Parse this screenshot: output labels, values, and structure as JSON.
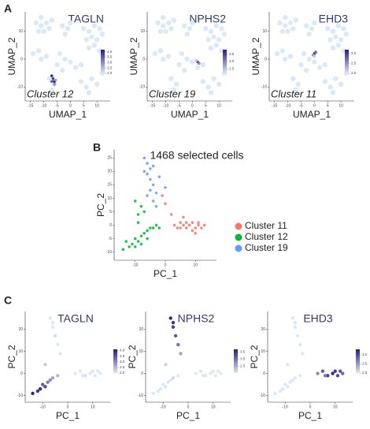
{
  "panels": [
    "A",
    "B",
    "C"
  ],
  "colormap": [
    "#dbe9f6",
    "#2a1a7f"
  ],
  "umap_cells": {
    "x": [
      -13,
      -11,
      -9,
      -12,
      -10,
      -8,
      -7,
      -11,
      -3,
      -1,
      0,
      -2,
      5,
      7,
      9,
      11,
      8,
      10,
      6,
      12,
      9,
      7,
      11,
      -14,
      -12,
      -11,
      -9,
      -4,
      -2,
      -5,
      -3,
      0,
      2,
      4,
      -8,
      -6,
      -7,
      4,
      6,
      8,
      10,
      7,
      12
    ],
    "y": [
      13,
      12,
      13,
      10,
      10,
      11,
      14,
      15,
      12,
      11,
      13,
      9,
      11,
      10,
      12,
      11,
      8,
      7,
      7,
      9,
      5,
      4,
      3,
      2,
      3,
      0,
      1,
      2,
      0,
      -2,
      -4,
      -1,
      -3,
      -2,
      -7,
      -9,
      -11,
      -8,
      -10,
      -7,
      -9,
      -12,
      -5
    ]
  },
  "chart_data": [
    {
      "type": "umap",
      "title": "TAGLN",
      "annotation": "Cluster 12",
      "xlabel": "UMAP_1",
      "ylabel": "UMAP_2",
      "xlim": [
        -17,
        15
      ],
      "ylim": [
        -15,
        17
      ],
      "xticks": [
        -15,
        -10,
        -5,
        0,
        5,
        10
      ],
      "yticks": [
        -10,
        0,
        10
      ],
      "x": [
        -7,
        -6.5,
        -6,
        -7,
        -6,
        -5.5
      ],
      "y": [
        -6,
        -7,
        -8,
        -8,
        -9,
        -7.5
      ],
      "expression": [
        4.0,
        3.8,
        4.2,
        3.5,
        3.0,
        2.8
      ],
      "clim": [
        2,
        4.2
      ],
      "cticks": [
        {
          "value": 2,
          "label": "2.0"
        },
        {
          "value": 2.5,
          "label": "2.5"
        },
        {
          "value": 3,
          "label": "3.0"
        },
        {
          "value": 3.5,
          "label": "3.5"
        },
        {
          "value": 4,
          "label": "4.0"
        }
      ]
    },
    {
      "type": "umap",
      "title": "NPHS2",
      "annotation": "Cluster 19",
      "xlabel": "UMAP_1",
      "ylabel": "UMAP_2",
      "xlim": [
        -17,
        15
      ],
      "ylim": [
        -15,
        17
      ],
      "xticks": [
        -15,
        -10,
        -5,
        0,
        5,
        10
      ],
      "yticks": [
        -10,
        0,
        10
      ],
      "x": [
        2,
        2.5,
        1.5
      ],
      "y": [
        -1,
        -1.5,
        -0.5
      ],
      "expression": [
        3.5,
        3.0,
        2.5
      ],
      "clim": [
        2.2,
        3.8
      ],
      "cticks": [
        {
          "value": 2.5,
          "label": "2.5"
        },
        {
          "value": 3,
          "label": "3.0"
        },
        {
          "value": 3.5,
          "label": "3.5"
        }
      ]
    },
    {
      "type": "umap",
      "title": "EHD3",
      "annotation": "Cluster 11",
      "xlabel": "UMAP_1",
      "ylabel": "UMAP_2",
      "xlim": [
        -17,
        15
      ],
      "ylim": [
        -15,
        17
      ],
      "xticks": [
        -15,
        -10,
        -5,
        0,
        5,
        10
      ],
      "yticks": [
        -10,
        0,
        10
      ],
      "x": [
        0,
        0.5,
        -0.5,
        0
      ],
      "y": [
        2,
        2.5,
        1.5,
        1
      ],
      "expression": [
        3.0,
        2.8,
        2.5,
        2.2
      ],
      "clim": [
        2,
        3.2
      ],
      "cticks": [
        {
          "value": 2,
          "label": "2.0"
        },
        {
          "value": 2.5,
          "label": "2.5"
        },
        {
          "value": 3,
          "label": "3.0"
        }
      ]
    },
    {
      "type": "scatter",
      "title": "1468 selected cells",
      "xlabel": "PC_1",
      "ylabel": "PC_2",
      "xlim": [
        -17,
        17
      ],
      "ylim": [
        -13,
        28
      ],
      "xticks": [
        -10,
        0,
        10
      ],
      "yticks": [
        -10,
        -5,
        0,
        5,
        10,
        15,
        20,
        25
      ],
      "series": [
        {
          "name": "Cluster 11",
          "color": "#f8766d",
          "x": [
            3,
            4,
            5,
            6,
            7,
            8,
            9,
            10,
            11,
            12,
            13,
            9,
            7,
            5,
            11,
            6,
            10,
            2,
            0,
            -1
          ],
          "y": [
            0,
            -1,
            1,
            0,
            -1,
            0,
            1,
            -1,
            0,
            -1,
            0,
            -2,
            1,
            -1,
            1,
            3,
            -3,
            4,
            8,
            11
          ]
        },
        {
          "name": "Cluster 12",
          "color": "#00ba38",
          "x": [
            -14,
            -12,
            -13,
            -11,
            -10,
            -9,
            -8,
            -7,
            -6,
            -5,
            -4,
            -3,
            -2,
            -8,
            -6,
            -10,
            -9,
            -8,
            -10,
            -7,
            -9
          ],
          "y": [
            -9,
            -8,
            -6,
            -7,
            -5,
            -6,
            -4,
            -3,
            -2,
            -1,
            -1,
            0,
            -1,
            -7,
            -5,
            -8,
            4,
            7,
            9,
            5,
            1
          ]
        },
        {
          "name": "Cluster 19",
          "color": "#619cff",
          "x": [
            -7,
            -6,
            -5,
            -6,
            -5,
            -4,
            -5,
            -6,
            -4,
            -3,
            -7,
            -4,
            -3,
            -2,
            0
          ],
          "y": [
            25,
            23,
            21,
            19,
            17,
            15,
            13,
            11,
            9,
            7,
            20,
            22,
            12,
            18,
            14
          ]
        }
      ]
    },
    {
      "type": "pca",
      "title": "TAGLN",
      "xlabel": "PC_1",
      "ylabel": "PC_2",
      "xlim": [
        -17,
        17
      ],
      "ylim": [
        -13,
        28
      ],
      "xticks": [
        -10,
        0,
        10
      ],
      "yticks": [
        -10,
        0,
        10,
        20
      ],
      "x": [
        -14,
        -12,
        -11,
        -10,
        -9,
        -8,
        -7,
        -6,
        -4,
        -9,
        -7,
        -6,
        -5,
        -4,
        -3,
        -6,
        3,
        5,
        7,
        9,
        11,
        13,
        10,
        6,
        12
      ],
      "y": [
        -9,
        -8,
        -7,
        -5,
        -6,
        -4,
        -3,
        -2,
        -1,
        4,
        25,
        21,
        17,
        13,
        9,
        23,
        0,
        1,
        -1,
        0,
        -1,
        0,
        1,
        -1,
        1
      ],
      "expression": [
        4.0,
        3.8,
        3.9,
        3.4,
        3.6,
        3.1,
        2.9,
        2.7,
        2.5,
        2.3,
        2.0,
        2.0,
        2.1,
        2.0,
        2.0,
        2.0,
        2.0,
        2.0,
        2.1,
        2.0,
        2.0,
        2.0,
        2.0,
        2.0,
        2.0
      ],
      "clim": [
        2,
        4.1
      ],
      "cticks": [
        {
          "value": 2,
          "label": "2.0"
        },
        {
          "value": 2.5,
          "label": "2.5"
        },
        {
          "value": 3,
          "label": "3.0"
        },
        {
          "value": 3.5,
          "label": "3.5"
        },
        {
          "value": 4,
          "label": "4.0"
        }
      ]
    },
    {
      "type": "pca",
      "title": "NPHS2",
      "xlabel": "PC_1",
      "ylabel": "PC_2",
      "xlim": [
        -17,
        17
      ],
      "ylim": [
        -13,
        28
      ],
      "xticks": [
        -10,
        0,
        10
      ],
      "yticks": [
        -10,
        0,
        10,
        20
      ],
      "x": [
        -14,
        -12,
        -11,
        -10,
        -9,
        -8,
        -7,
        -6,
        -4,
        -9,
        -7,
        -6,
        -5,
        -4,
        -3,
        -6,
        3,
        5,
        7,
        9,
        11,
        13,
        10,
        6,
        12
      ],
      "y": [
        -9,
        -8,
        -7,
        -5,
        -6,
        -4,
        -3,
        -2,
        -1,
        4,
        25,
        21,
        17,
        13,
        9,
        23,
        0,
        1,
        -1,
        0,
        -1,
        0,
        1,
        -1,
        1
      ],
      "expression": [
        2.0,
        2.0,
        2.0,
        2.0,
        2.0,
        2.0,
        2.0,
        2.1,
        2.0,
        2.2,
        3.6,
        3.4,
        3.2,
        3.0,
        2.6,
        3.5,
        2.0,
        2.0,
        2.0,
        2.0,
        2.0,
        2.0,
        2.0,
        2.0,
        2.0
      ],
      "clim": [
        2,
        3.7
      ],
      "cticks": [
        {
          "value": 2.5,
          "label": "2.5"
        },
        {
          "value": 3,
          "label": "3.0"
        },
        {
          "value": 3.5,
          "label": "3.5"
        }
      ]
    },
    {
      "type": "pca",
      "title": "EHD3",
      "xlabel": "PC_1",
      "ylabel": "PC_2",
      "xlim": [
        -17,
        17
      ],
      "ylim": [
        -13,
        28
      ],
      "xticks": [
        -10,
        0,
        10
      ],
      "yticks": [
        -10,
        0,
        10,
        20
      ],
      "x": [
        -14,
        -12,
        -11,
        -10,
        -9,
        -8,
        -7,
        -6,
        -4,
        -9,
        -7,
        -6,
        -5,
        -4,
        -3,
        -6,
        3,
        5,
        7,
        9,
        11,
        13,
        10,
        6,
        12
      ],
      "y": [
        -9,
        -8,
        -7,
        -5,
        -6,
        -4,
        -3,
        -2,
        -1,
        4,
        25,
        21,
        17,
        13,
        9,
        23,
        0,
        1,
        -1,
        0,
        -1,
        0,
        1,
        -1,
        1
      ],
      "expression": [
        2.0,
        2.0,
        2.0,
        2.0,
        2.0,
        2.0,
        2.0,
        2.0,
        2.0,
        2.0,
        2.0,
        2.0,
        2.0,
        2.0,
        2.0,
        2.0,
        2.6,
        2.9,
        3.1,
        3.2,
        3.0,
        2.8,
        3.1,
        2.7,
        2.9
      ],
      "clim": [
        2,
        3.3
      ],
      "cticks": [
        {
          "value": 2,
          "label": "2.0"
        },
        {
          "value": 2.5,
          "label": "2.5"
        },
        {
          "value": 3,
          "label": "3.0"
        }
      ]
    }
  ]
}
